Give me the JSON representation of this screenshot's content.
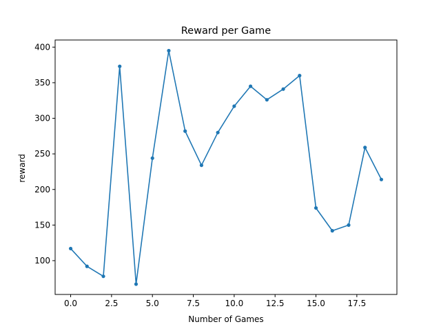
{
  "chart_data": {
    "type": "line",
    "title": "Reward per Game",
    "xlabel": "Number of Games",
    "ylabel": "reward",
    "xlim": [
      -0.95,
      19.95
    ],
    "ylim": [
      52.5,
      410
    ],
    "xticks": [
      0.0,
      2.5,
      5.0,
      7.5,
      10.0,
      12.5,
      15.0,
      17.5
    ],
    "xtick_labels": [
      "0.0",
      "2.5",
      "5.0",
      "7.5",
      "10.0",
      "12.5",
      "15.0",
      "17.5"
    ],
    "yticks": [
      100,
      150,
      200,
      250,
      300,
      350,
      400
    ],
    "ytick_labels": [
      "100",
      "150",
      "200",
      "250",
      "300",
      "350",
      "400"
    ],
    "grid": false,
    "legend": "none",
    "series": [
      {
        "color": "#1f77b4",
        "marker": "circle",
        "x": [
          0,
          1,
          2,
          3,
          4,
          5,
          6,
          7,
          8,
          9,
          10,
          11,
          12,
          13,
          14,
          15,
          16,
          17,
          18,
          19
        ],
        "y": [
          117,
          92,
          78,
          373,
          67,
          244,
          395,
          282,
          234,
          280,
          317,
          345,
          326,
          341,
          360,
          174,
          142,
          150,
          259,
          214
        ]
      }
    ]
  }
}
